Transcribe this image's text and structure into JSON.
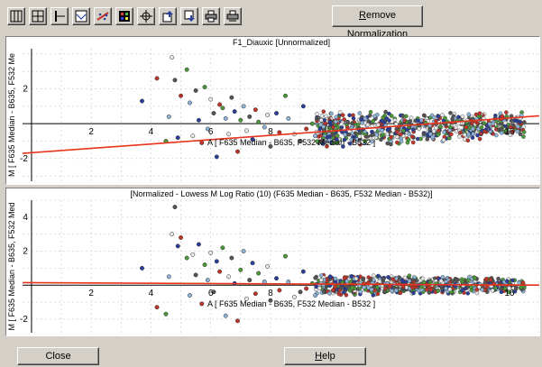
{
  "toolbar": {
    "buttons": [
      {
        "name": "vertical-split-icon"
      },
      {
        "name": "grid-view-icon"
      },
      {
        "name": "axis-icon"
      },
      {
        "name": "chart-window-icon"
      },
      {
        "name": "scatter-trend-icon"
      },
      {
        "name": "color-grid-icon"
      },
      {
        "name": "zoom-target-icon"
      },
      {
        "name": "export-up-icon"
      },
      {
        "name": "export-down-icon"
      },
      {
        "name": "print-icon"
      },
      {
        "name": "print-settings-icon"
      }
    ],
    "remove_normalization_prefix": "R",
    "remove_normalization_rest": "emove Normalization"
  },
  "chart_data": [
    {
      "type": "scatter",
      "title": "F1_Diauxic [Unnormalized]",
      "xlabel": "A [ F635 Median - B635, F532 Median - B532 ]",
      "ylabel": "M [ F635 Median - B635, F532 Me",
      "xlim": [
        -0.3,
        17
      ],
      "ylim": [
        -3.3,
        4.3
      ],
      "xticks": [
        2,
        4,
        6,
        8,
        16
      ],
      "yticks": [
        2,
        -2
      ],
      "grid": true,
      "fit_line": {
        "color": "#e8341c",
        "x": [
          -0.3,
          17
        ],
        "y": [
          -1.7,
          0.45
        ]
      },
      "point_colors": [
        "#2b3f9a",
        "#c0342a",
        "#4a9a3a",
        "#8db4d8",
        "#e8e8e8",
        "#555555"
      ],
      "points": [
        [
          3.7,
          1.3
        ],
        [
          4.2,
          2.6
        ],
        [
          4.5,
          -1.0
        ],
        [
          4.6,
          0.4
        ],
        [
          4.7,
          3.8
        ],
        [
          4.8,
          2.5
        ],
        [
          4.9,
          -0.8
        ],
        [
          5.0,
          1.6
        ],
        [
          5.2,
          3.1
        ],
        [
          5.3,
          1.2
        ],
        [
          5.4,
          -0.7
        ],
        [
          5.5,
          1.9
        ],
        [
          5.6,
          0.2
        ],
        [
          5.7,
          -1.1
        ],
        [
          5.8,
          2.1
        ],
        [
          5.9,
          -0.3
        ],
        [
          6.0,
          1.4
        ],
        [
          6.1,
          0.6
        ],
        [
          6.2,
          -1.9
        ],
        [
          6.3,
          1.1
        ],
        [
          6.4,
          0.9
        ],
        [
          6.5,
          0.3
        ],
        [
          6.6,
          -0.6
        ],
        [
          6.7,
          1.5
        ],
        [
          6.8,
          0.7
        ],
        [
          6.9,
          -1.6
        ],
        [
          7.0,
          0.2
        ],
        [
          7.1,
          1.0
        ],
        [
          7.2,
          -0.4
        ],
        [
          7.3,
          0.4
        ],
        [
          7.4,
          -0.9
        ],
        [
          7.5,
          0.8
        ],
        [
          7.6,
          0.1
        ],
        [
          7.8,
          -0.2
        ],
        [
          7.9,
          0.5
        ],
        [
          8.0,
          -1.3
        ],
        [
          8.2,
          0.6
        ],
        [
          8.3,
          -0.5
        ],
        [
          8.5,
          1.6
        ],
        [
          8.6,
          0.3
        ],
        [
          8.8,
          -0.6
        ],
        [
          9.0,
          -1.0
        ],
        [
          9.1,
          1.0
        ],
        [
          9.2,
          -0.3
        ],
        [
          9.4,
          0.0
        ],
        [
          9.5,
          -0.7
        ],
        [
          9.7,
          0.2
        ],
        [
          9.8,
          -0.4
        ],
        [
          10.0,
          0.1
        ],
        [
          10.1,
          -0.2
        ]
      ],
      "dense_band": {
        "x": [
          9.5,
          16.5
        ],
        "y_low": -1.5,
        "y_high": 0.8
      }
    },
    {
      "type": "scatter",
      "title": "[Normalized - Lowess M Log Ratio (10) (F635 Median - B635, F532 Median - B532)]",
      "xlabel": "A [ F635 Median - B635, F532 Median - B532 ]",
      "ylabel": "M [ F635 Median - B635, F532 Med",
      "xlim": [
        -0.3,
        17
      ],
      "ylim": [
        -2.8,
        5.0
      ],
      "xticks": [
        2,
        4,
        6,
        8,
        16
      ],
      "yticks": [
        4,
        2,
        -2
      ],
      "grid": true,
      "fit_line": {
        "color": "#e8341c",
        "x": [
          -0.3,
          17
        ],
        "y": [
          0.15,
          0.0
        ]
      },
      "point_colors": [
        "#2b3f9a",
        "#c0342a",
        "#4a9a3a",
        "#8db4d8",
        "#e8e8e8",
        "#555555"
      ],
      "points": [
        [
          3.7,
          1.0
        ],
        [
          4.2,
          -1.3
        ],
        [
          4.5,
          -1.7
        ],
        [
          4.6,
          0.5
        ],
        [
          4.7,
          3.0
        ],
        [
          4.8,
          4.6
        ],
        [
          4.9,
          2.3
        ],
        [
          5.0,
          2.8
        ],
        [
          5.2,
          1.6
        ],
        [
          5.3,
          -0.6
        ],
        [
          5.4,
          1.8
        ],
        [
          5.5,
          0.6
        ],
        [
          5.6,
          2.4
        ],
        [
          5.7,
          -1.1
        ],
        [
          5.8,
          1.2
        ],
        [
          5.9,
          0.3
        ],
        [
          6.0,
          1.9
        ],
        [
          6.1,
          -0.4
        ],
        [
          6.2,
          1.4
        ],
        [
          6.3,
          0.8
        ],
        [
          6.4,
          2.2
        ],
        [
          6.5,
          -1.8
        ],
        [
          6.6,
          0.5
        ],
        [
          6.7,
          1.6
        ],
        [
          6.8,
          0.1
        ],
        [
          6.9,
          -2.1
        ],
        [
          7.0,
          0.9
        ],
        [
          7.1,
          2.0
        ],
        [
          7.2,
          -0.8
        ],
        [
          7.3,
          0.3
        ],
        [
          7.4,
          1.3
        ],
        [
          7.5,
          -0.5
        ],
        [
          7.6,
          0.7
        ],
        [
          7.8,
          0.2
        ],
        [
          7.9,
          1.1
        ],
        [
          8.0,
          -0.9
        ],
        [
          8.2,
          0.4
        ],
        [
          8.3,
          -0.3
        ],
        [
          8.5,
          1.7
        ],
        [
          8.6,
          0.2
        ],
        [
          8.8,
          -0.7
        ],
        [
          9.0,
          -0.4
        ],
        [
          9.1,
          0.8
        ],
        [
          9.2,
          -0.2
        ],
        [
          9.4,
          0.1
        ],
        [
          9.5,
          -0.6
        ],
        [
          9.7,
          0.3
        ],
        [
          9.8,
          -0.4
        ],
        [
          10.0,
          0.5
        ],
        [
          10.1,
          -0.3
        ]
      ],
      "dense_band": {
        "x": [
          9.5,
          16.5
        ],
        "y_low": -0.7,
        "y_high": 0.7
      }
    }
  ],
  "buttons": {
    "close_label": "Close",
    "help_prefix": "H",
    "help_rest": "elp"
  }
}
